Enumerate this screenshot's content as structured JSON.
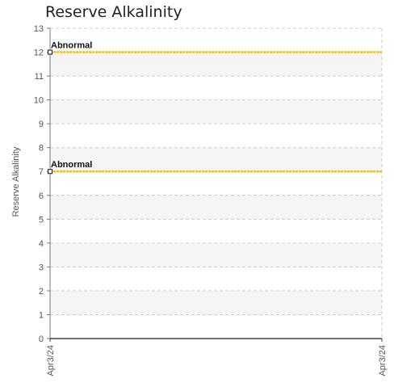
{
  "chart_data": {
    "type": "line",
    "title": "Reserve Alkalinity",
    "ylabel": "Reserve Alkalinity",
    "xlabel": "",
    "ylim": [
      0,
      13
    ],
    "yticks": [
      0,
      1,
      2,
      3,
      4,
      5,
      6,
      7,
      8,
      9,
      10,
      11,
      12,
      13
    ],
    "x_tick_labels": [
      "Apr3/24",
      "Apr3/24"
    ],
    "grid": true,
    "series": [
      {
        "values": [
          12,
          12
        ],
        "color": "#f2c500",
        "marker_label": "Abnormal"
      },
      {
        "values": [
          7,
          7
        ],
        "color": "#f2c500",
        "marker_label": "Abnormal"
      }
    ]
  }
}
